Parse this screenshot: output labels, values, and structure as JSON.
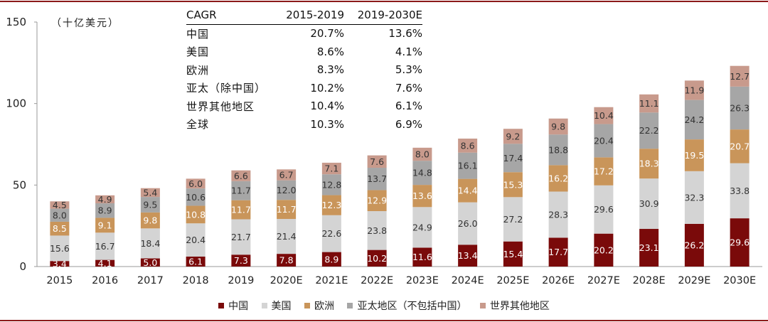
{
  "unit_label": "（十亿美元）",
  "cagr_table": {
    "headers": [
      "CAGR",
      "2015-2019",
      "2019-2030E"
    ],
    "rows": [
      {
        "region": "中国",
        "a": "20.7%",
        "b": "13.6%"
      },
      {
        "region": "美国",
        "a": "8.6%",
        "b": "4.1%"
      },
      {
        "region": "欧洲",
        "a": "8.3%",
        "b": "5.3%"
      },
      {
        "region": "亚太（除中国）",
        "a": "10.2%",
        "b": "7.6%"
      },
      {
        "region": "世界其他地区",
        "a": "10.4%",
        "b": "6.1%"
      },
      {
        "region": "全球",
        "a": "10.3%",
        "b": "6.9%"
      }
    ]
  },
  "colors": {
    "china": "#7a0a0a",
    "usa": "#d4d4d4",
    "europe": "#c9955a",
    "apac": "#a6a6a6",
    "rest": "#c89a8c",
    "axis": "#999999",
    "frame": "#8b1a1a"
  },
  "chart_data": {
    "type": "bar",
    "stacked": true,
    "categories": [
      "2015",
      "2016",
      "2017",
      "2018",
      "2019",
      "2020E",
      "2021E",
      "2022E",
      "2023E",
      "2024E",
      "2025E",
      "2026E",
      "2027E",
      "2028E",
      "2029E",
      "2030E"
    ],
    "series": [
      {
        "name": "中国",
        "color": "#7a0a0a",
        "label_color": "#ffffff",
        "values": [
          3.4,
          4.1,
          5.0,
          6.1,
          7.3,
          7.8,
          8.9,
          10.2,
          11.6,
          13.4,
          15.4,
          17.7,
          20.2,
          23.1,
          26.2,
          29.6
        ]
      },
      {
        "name": "美国",
        "color": "#d4d4d4",
        "label_color": "#333333",
        "values": [
          15.6,
          16.7,
          18.4,
          20.4,
          21.7,
          21.4,
          22.6,
          23.8,
          24.9,
          26.0,
          27.2,
          28.3,
          29.6,
          30.9,
          32.3,
          33.8
        ]
      },
      {
        "name": "欧洲",
        "color": "#c9955a",
        "label_color": "#ffffff",
        "values": [
          8.5,
          9.1,
          9.8,
          10.8,
          11.7,
          11.7,
          12.3,
          12.9,
          13.6,
          14.4,
          15.3,
          16.2,
          17.2,
          18.3,
          19.5,
          20.7
        ]
      },
      {
        "name": "亚太地区（不包括中国）",
        "color": "#a6a6a6",
        "label_color": "#333333",
        "values": [
          8.0,
          8.9,
          9.5,
          10.6,
          11.7,
          12.0,
          12.8,
          13.7,
          14.8,
          16.1,
          17.4,
          18.8,
          20.4,
          22.2,
          24.2,
          26.3
        ]
      },
      {
        "name": "世界其他地区",
        "color": "#c89a8c",
        "label_color": "#333333",
        "values": [
          4.5,
          4.9,
          5.4,
          6.0,
          6.6,
          6.7,
          7.1,
          7.6,
          8.0,
          8.6,
          9.2,
          9.8,
          10.4,
          11.1,
          11.9,
          12.7
        ]
      }
    ],
    "y_ticks": [
      "0",
      "50",
      "100",
      "150"
    ],
    "ylim": [
      0,
      150
    ],
    "grid": false,
    "legend_position": "bottom"
  }
}
